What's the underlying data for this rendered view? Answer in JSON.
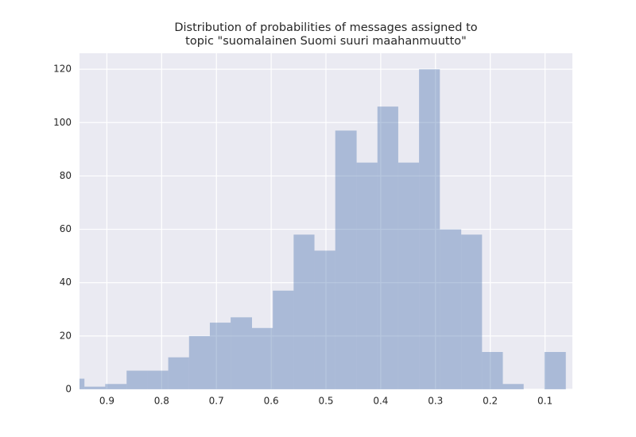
{
  "chart_data": {
    "type": "histogram",
    "title": [
      "Distribution of probabilities of messages assigned to",
      "topic \"suomalainen Suomi suuri maahanmuutto\""
    ],
    "bins": [
      0.979,
      0.941,
      0.903,
      0.864,
      0.826,
      0.788,
      0.75,
      0.712,
      0.674,
      0.635,
      0.597,
      0.559,
      0.521,
      0.483,
      0.444,
      0.406,
      0.368,
      0.33,
      0.292,
      0.253,
      0.215,
      0.177,
      0.139,
      0.101,
      0.062
    ],
    "counts": [
      4,
      1,
      2,
      7,
      7,
      12,
      20,
      25,
      27,
      23,
      37,
      58,
      52,
      97,
      85,
      106,
      85,
      120,
      60,
      58,
      14,
      2,
      0,
      14
    ],
    "color": "#4c72b0",
    "alpha": 0.4,
    "xlim": [
      0.95,
      0.05
    ],
    "xticks": [
      0.9,
      0.8,
      0.7,
      0.6,
      0.5,
      0.4,
      0.3,
      0.2,
      0.1
    ],
    "ylim": [
      0,
      126
    ],
    "yticks": [
      0,
      20,
      40,
      60,
      80,
      100,
      120
    ],
    "grid": true,
    "background": "#eaeaf2"
  }
}
